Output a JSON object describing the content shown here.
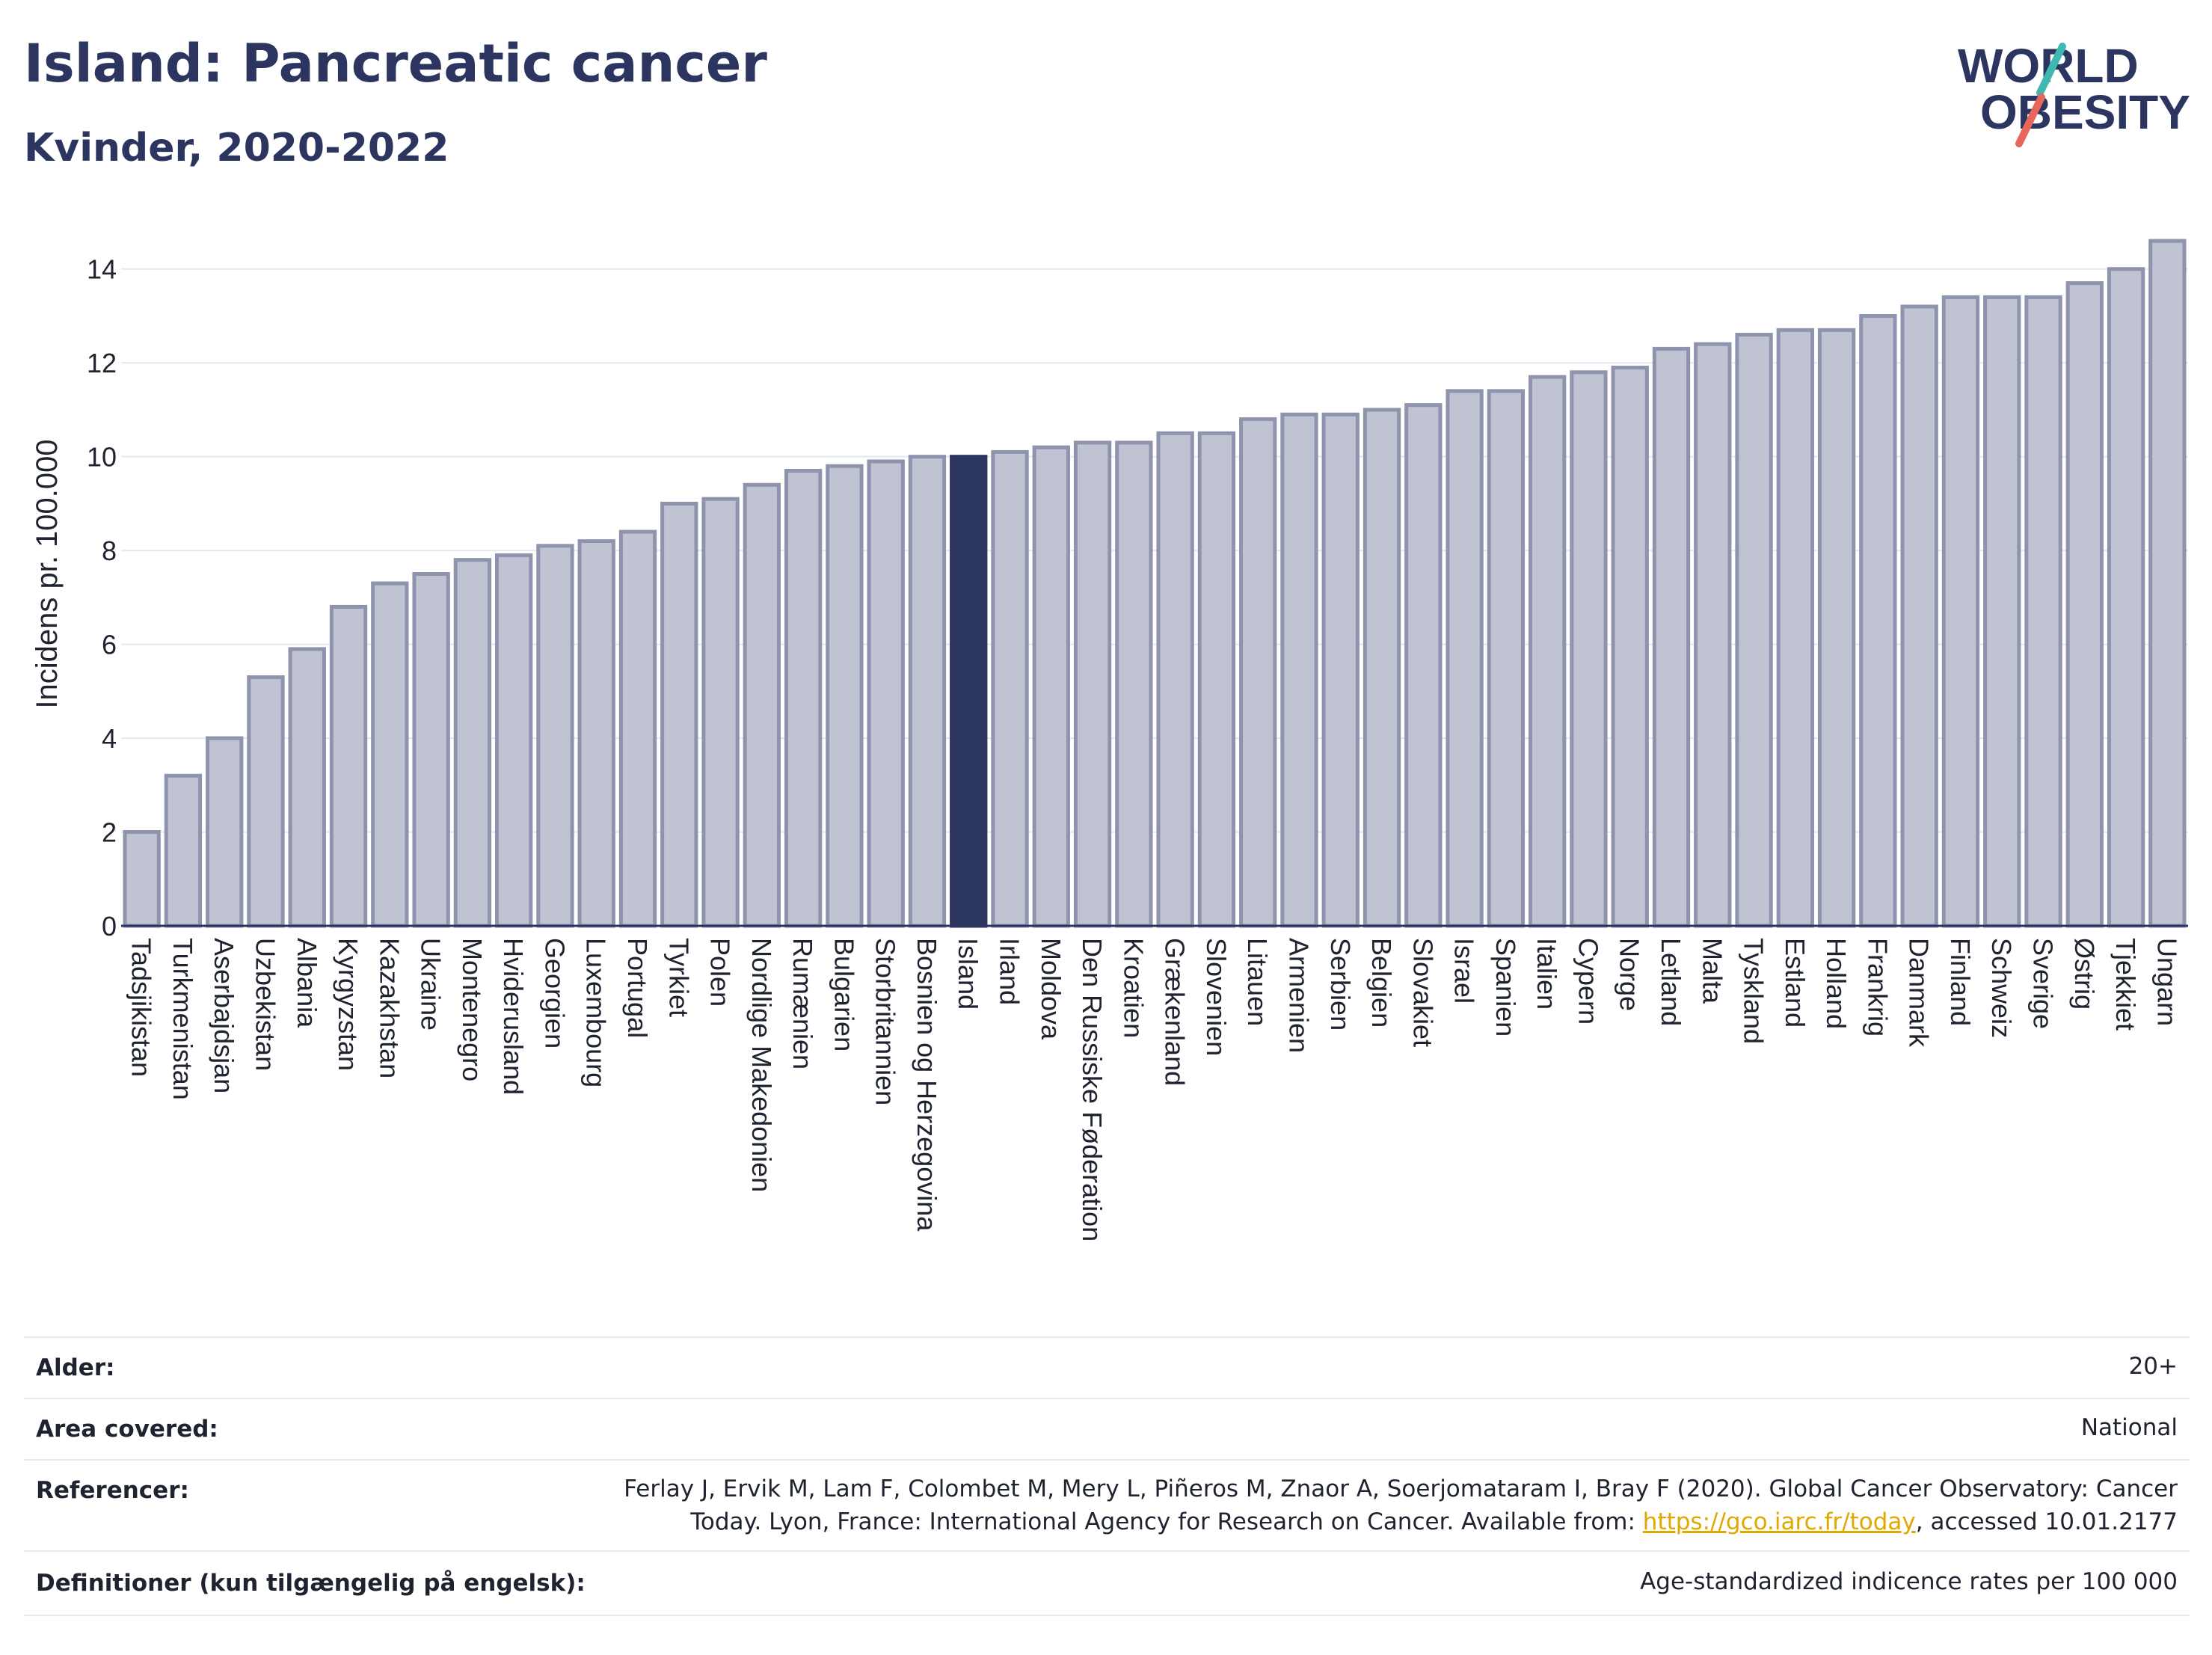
{
  "header": {
    "title": "Island: Pancreatic cancer",
    "subtitle": "Kvinder, 2020-2022",
    "logo_line1": "WORLD",
    "logo_line2": "OBESITY"
  },
  "colors": {
    "bar": "#bfc3d2",
    "bar_stroke": "#8e93ae",
    "highlight": "#2b3560",
    "grid": "#e4e7ee",
    "axis": "#2b3560",
    "logo_accent_teal": "#3fb8b0",
    "logo_accent_red": "#e8675a",
    "link": "#e0a800"
  },
  "chart_data": {
    "type": "bar",
    "title": "Island: Pancreatic cancer",
    "subtitle": "Kvinder, 2020-2022",
    "ylabel": "Incidens pr. 100.000",
    "xlabel": "",
    "ylim": [
      0,
      15
    ],
    "yticks": [
      0,
      2,
      4,
      6,
      8,
      10,
      12,
      14
    ],
    "grid": true,
    "highlight_category": "Island",
    "categories": [
      "Tadsjikistan",
      "Turkmenistan",
      "Aserbajdsjan",
      "Uzbekistan",
      "Albania",
      "Kyrgyzstan",
      "Kazakhstan",
      "Ukraine",
      "Montenegro",
      "Hviderusland",
      "Georgien",
      "Luxembourg",
      "Portugal",
      "Tyrkiet",
      "Polen",
      "Nordlige Makedonien",
      "Rumænien",
      "Bulgarien",
      "Storbritannien",
      "Bosnien og Herzegovina",
      "Island",
      "Irland",
      "Moldova",
      "Den Russiske Føderation",
      "Kroatien",
      "Grækenland",
      "Slovenien",
      "Litauen",
      "Armenien",
      "Serbien",
      "Belgien",
      "Slovakiet",
      "Israel",
      "Spanien",
      "Italien",
      "Cypern",
      "Norge",
      "Letland",
      "Malta",
      "Tyskland",
      "Estland",
      "Holland",
      "Frankrig",
      "Danmark",
      "Finland",
      "Schweiz",
      "Sverige",
      "Østrig",
      "Tjekkiet",
      "Ungarn"
    ],
    "values": [
      2.0,
      3.2,
      4.0,
      5.3,
      5.9,
      6.8,
      7.3,
      7.5,
      7.8,
      7.9,
      8.1,
      8.2,
      8.4,
      9.0,
      9.1,
      9.4,
      9.7,
      9.8,
      9.9,
      10.0,
      10.0,
      10.1,
      10.2,
      10.3,
      10.3,
      10.5,
      10.5,
      10.8,
      10.9,
      10.9,
      11.0,
      11.1,
      11.4,
      11.4,
      11.7,
      11.8,
      11.9,
      12.3,
      12.4,
      12.6,
      12.7,
      12.7,
      13.0,
      13.2,
      13.4,
      13.4,
      13.4,
      13.7,
      14.0,
      14.6
    ]
  },
  "meta": {
    "rows": [
      {
        "label": "Alder:",
        "value": "20+"
      },
      {
        "label": "Area covered:",
        "value": "National"
      },
      {
        "label": "Referencer:",
        "value_line1": "Ferlay J, Ervik M, Lam F, Colombet M, Mery L, Piñeros M, Znaor A, Soerjomataram I, Bray F (2020). Global Cancer Observatory: Cancer",
        "value_line2_pre": "Today. Lyon, France: International Agency for Research on Cancer. Available from: ",
        "link_text": "https://gco.iarc.fr/today",
        "value_line2_post": ", accessed 10.01.2177"
      },
      {
        "label": "Definitioner (kun tilgængelig på engelsk):",
        "value": "Age-standardized indicence rates per 100 000"
      }
    ]
  }
}
